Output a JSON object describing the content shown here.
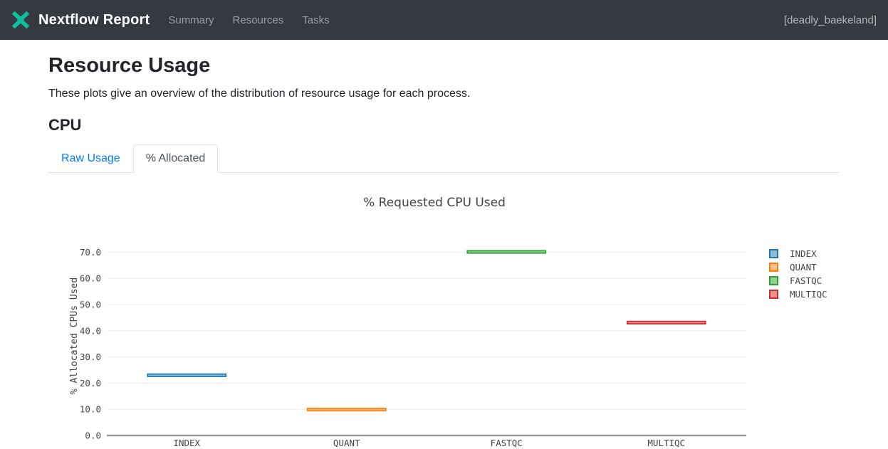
{
  "navbar": {
    "brand": "Nextflow Report",
    "items": [
      {
        "label": "Summary"
      },
      {
        "label": "Resources"
      },
      {
        "label": "Tasks"
      }
    ],
    "run_name": "[deadly_baekeland]",
    "logo_color": "#0dc09d",
    "bg_color": "#343a40"
  },
  "page": {
    "title": "Resource Usage",
    "description": "These plots give an overview of the distribution of resource usage for each process."
  },
  "section": {
    "title": "CPU"
  },
  "tabs": [
    {
      "label": "Raw Usage",
      "active": false
    },
    {
      "label": "% Allocated",
      "active": true
    }
  ],
  "chart_data": {
    "type": "box",
    "title": "% Requested CPU Used",
    "xlabel": "",
    "ylabel": "% Allocated CPUs Used",
    "categories": [
      "INDEX",
      "QUANT",
      "FASTQC",
      "MULTIQC"
    ],
    "series": [
      {
        "name": "INDEX",
        "median": 23.0,
        "color": "#1f77b4"
      },
      {
        "name": "QUANT",
        "median": 9.9,
        "color": "#ff7f0e"
      },
      {
        "name": "FASTQC",
        "median": 70.1,
        "color": "#2ca02c"
      },
      {
        "name": "MULTIQC",
        "median": 43.1,
        "color": "#d62728"
      }
    ],
    "ylim": [
      0,
      75
    ],
    "yticks": [
      0,
      10,
      20,
      30,
      40,
      50,
      60,
      70
    ],
    "ytick_labels": [
      "0.0",
      "10.0",
      "20.0",
      "30.0",
      "40.0",
      "50.0",
      "60.0",
      "70.0"
    ],
    "grid": true,
    "legend_position": "right",
    "colors": {
      "gridline": "#ebebeb",
      "axis_line": "#999999",
      "tick_text": "#444444",
      "title_text": "#444444"
    }
  }
}
